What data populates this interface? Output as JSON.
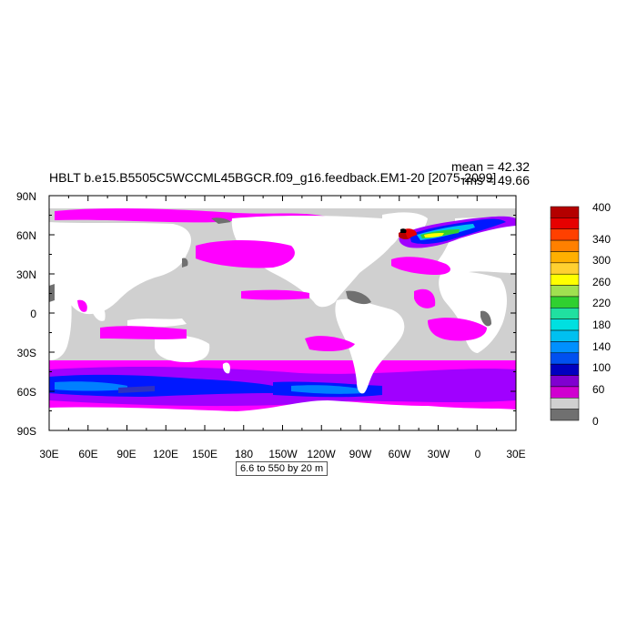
{
  "plot": {
    "title": "HBLT b.e15.B5505C5WCCML45BGCR.f09_g16.feedback.EM1-20 [2075-2099]",
    "mean": "mean = 42.32",
    "rms": "rms = 49.66",
    "contour_info": "6.6 to 550 by 20 m"
  },
  "axes": {
    "y_labels": [
      "90N",
      "60N",
      "30N",
      "0",
      "30S",
      "60S",
      "90S"
    ],
    "x_labels": [
      "30E",
      "60E",
      "90E",
      "120E",
      "150E",
      "180",
      "150W",
      "120W",
      "90W",
      "60W",
      "30W",
      "0",
      "30E"
    ]
  },
  "legend": {
    "labels": [
      "400",
      "340",
      "300",
      "260",
      "220",
      "180",
      "140",
      "100",
      "60",
      "0"
    ],
    "colors": [
      "#b40000",
      "#e60000",
      "#ff4000",
      "#ff8000",
      "#ffb000",
      "#ffd030",
      "#ffff00",
      "#a0e050",
      "#30d030",
      "#20e0a0",
      "#00e0e0",
      "#00c0f0",
      "#0090ff",
      "#0050f0",
      "#0000c0",
      "#8000d0",
      "#d000d0",
      "#d0d0d0",
      "#707070"
    ]
  },
  "colors": {
    "land": "#ffffff",
    "ocean_low": "#d0d0d0",
    "sea_ice": "#707070",
    "band_magenta": "#ff00ff",
    "band_purple": "#a000ff",
    "band_blue": "#0018ff",
    "band_lightblue": "#0080ff"
  }
}
